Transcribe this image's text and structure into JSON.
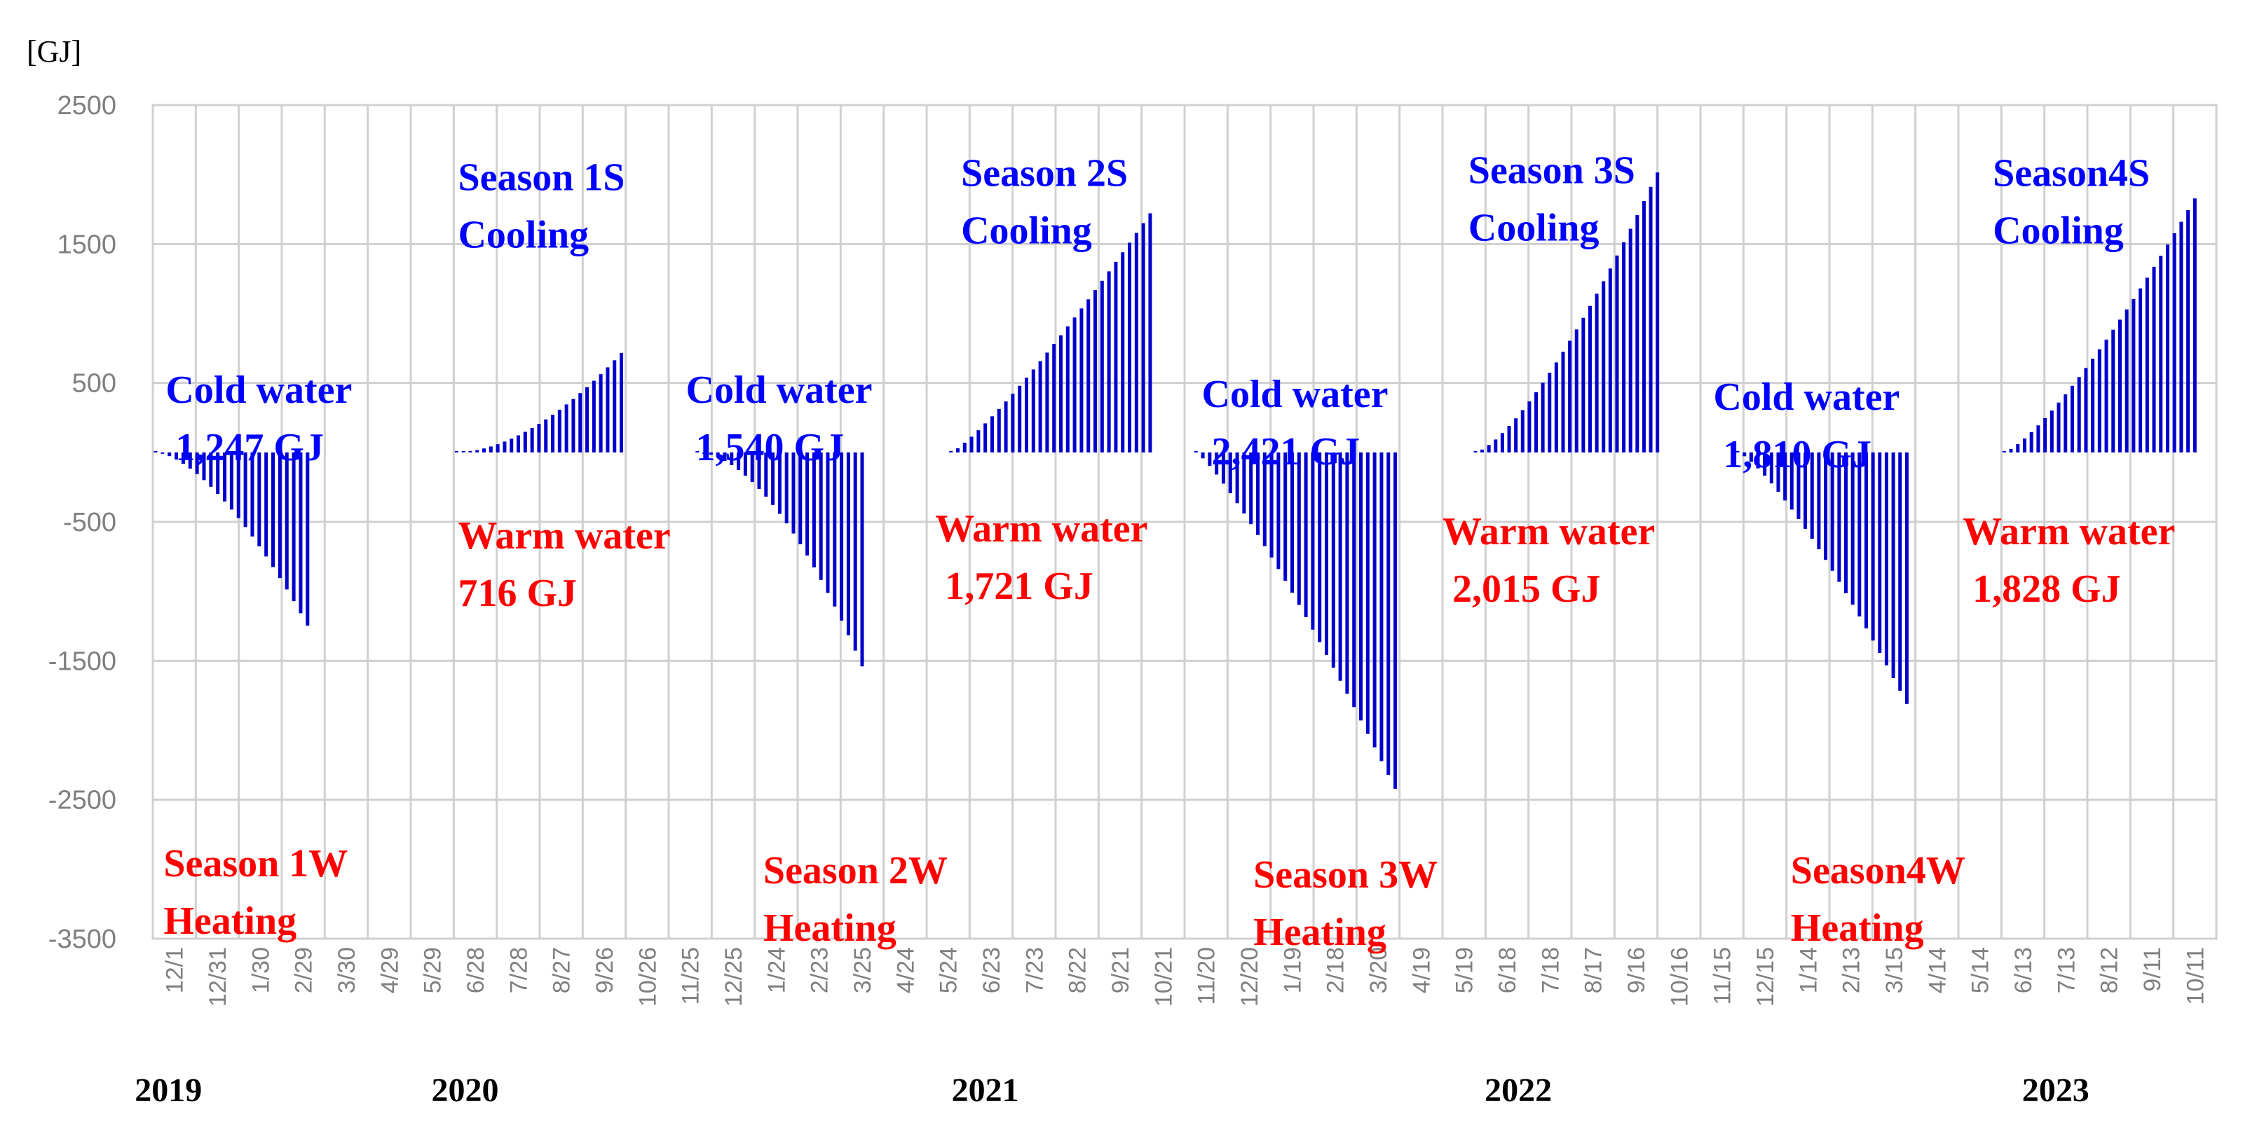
{
  "chart_data": {
    "type": "bar",
    "ylabel": "[GJ]",
    "ylim": [
      -3500,
      2500
    ],
    "yticks": [
      "2500",
      "1500",
      "500",
      "-500",
      "-1500",
      "-2500",
      "-3500"
    ],
    "grid": true,
    "bar_color": "#0000cc",
    "xtick_labels": [
      "12/1",
      "12/31",
      "1/30",
      "2/29",
      "3/30",
      "4/29",
      "5/29",
      "6/28",
      "7/28",
      "8/27",
      "9/26",
      "10/26",
      "11/25",
      "12/25",
      "1/24",
      "2/23",
      "3/25",
      "4/24",
      "5/24",
      "6/23",
      "7/23",
      "8/22",
      "9/21",
      "10/21",
      "11/20",
      "12/20",
      "1/19",
      "2/18",
      "3/20",
      "4/19",
      "5/19",
      "6/18",
      "7/18",
      "8/17",
      "9/16",
      "10/16",
      "11/15",
      "12/15",
      "1/14",
      "2/13",
      "3/15",
      "4/14",
      "5/14",
      "6/13",
      "7/13",
      "8/12",
      "9/11",
      "10/11"
    ],
    "years": [
      "2019",
      "2020",
      "2021",
      "2022",
      "2023"
    ],
    "seasons": [
      {
        "start_tick": 0,
        "end_tick": 3.6,
        "total": -1247,
        "shape": 1.6
      },
      {
        "start_tick": 7,
        "end_tick": 10.9,
        "total": 716,
        "shape": 1.8
      },
      {
        "start_tick": 12.6,
        "end_tick": 16.5,
        "total": -1540,
        "shape": 1.8
      },
      {
        "start_tick": 18.5,
        "end_tick": 23.2,
        "total": 1721,
        "shape": 1.2
      },
      {
        "start_tick": 24.2,
        "end_tick": 28.9,
        "total": -2421,
        "shape": 1.2
      },
      {
        "start_tick": 30.7,
        "end_tick": 35.0,
        "total": 2015,
        "shape": 1.4
      },
      {
        "start_tick": 36.8,
        "end_tick": 40.8,
        "total": -1810,
        "shape": 1.3
      },
      {
        "start_tick": 43.0,
        "end_tick": 47.5,
        "total": 1828,
        "shape": 1.3
      }
    ],
    "annotations": [
      {
        "lines": [
          "Season 1S",
          "Cooling"
        ],
        "color": "blue",
        "tick": 7.1,
        "y": 2150
      },
      {
        "lines": [
          "Season 2S",
          "Cooling"
        ],
        "color": "blue",
        "tick": 18.8,
        "y": 2180
      },
      {
        "lines": [
          "Season 3S",
          "Cooling"
        ],
        "color": "blue",
        "tick": 30.6,
        "y": 2200
      },
      {
        "lines": [
          "Season4S",
          "Cooling"
        ],
        "color": "blue",
        "tick": 42.8,
        "y": 2180
      },
      {
        "lines": [
          "Cold water",
          "1,247 GJ"
        ],
        "color": "blue",
        "tick": 0.3,
        "y": 620
      },
      {
        "lines": [
          "Cold water",
          "1,540 GJ"
        ],
        "color": "blue",
        "tick": 12.4,
        "y": 620
      },
      {
        "lines": [
          "Cold water",
          "2,421 GJ"
        ],
        "color": "blue",
        "tick": 24.4,
        "y": 590
      },
      {
        "lines": [
          "Cold water",
          "1,810 GJ"
        ],
        "color": "blue",
        "tick": 36.3,
        "y": 570
      },
      {
        "lines": [
          "Warm water",
          "716 GJ"
        ],
        "color": "red",
        "tick": 7.1,
        "y": -430
      },
      {
        "lines": [
          "Warm water",
          "1,721 GJ"
        ],
        "color": "red",
        "tick": 18.2,
        "y": -380
      },
      {
        "lines": [
          "Warm water",
          "2,015 GJ"
        ],
        "color": "red",
        "tick": 30.0,
        "y": -400
      },
      {
        "lines": [
          "Warm water",
          "1,828 GJ"
        ],
        "color": "red",
        "tick": 42.1,
        "y": -400
      },
      {
        "lines": [
          "Season 1W",
          "Heating"
        ],
        "color": "red",
        "tick": 0.25,
        "y": -2790
      },
      {
        "lines": [
          "Season 2W",
          "Heating"
        ],
        "color": "red",
        "tick": 14.2,
        "y": -2840
      },
      {
        "lines": [
          "Season 3W",
          "Heating"
        ],
        "color": "red",
        "tick": 25.6,
        "y": -2870
      },
      {
        "lines": [
          "Season4W",
          "Heating"
        ],
        "color": "red",
        "tick": 38.1,
        "y": -2840
      }
    ]
  }
}
